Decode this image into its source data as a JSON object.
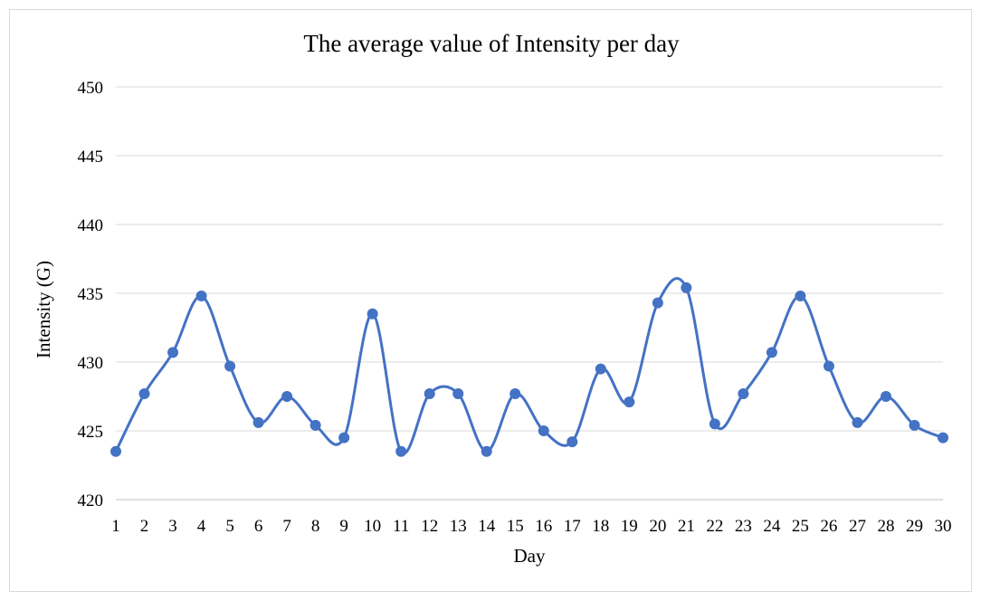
{
  "chart_data": {
    "type": "line",
    "title": "The average value of Intensity per day",
    "xlabel": "Day",
    "ylabel": "Intensity (G)",
    "ylim": [
      420,
      450
    ],
    "yticks": [
      420,
      425,
      430,
      435,
      440,
      445,
      450
    ],
    "grid": true,
    "smooth": true,
    "categories": [
      "1",
      "2",
      "3",
      "4",
      "5",
      "6",
      "7",
      "8",
      "9",
      "10",
      "11",
      "12",
      "13",
      "14",
      "15",
      "16",
      "17",
      "18",
      "19",
      "20",
      "21",
      "22",
      "23",
      "24",
      "25",
      "26",
      "27",
      "28",
      "29",
      "30"
    ],
    "series": [
      {
        "color": "#4472c4",
        "values": [
          423.5,
          427.7,
          430.7,
          434.8,
          429.7,
          425.6,
          427.5,
          425.4,
          424.5,
          433.5,
          423.5,
          427.7,
          427.7,
          423.5,
          427.7,
          425.0,
          424.2,
          429.5,
          427.1,
          434.3,
          435.4,
          425.5,
          427.7,
          430.7,
          434.8,
          429.7,
          425.6,
          427.5,
          425.4,
          424.5
        ]
      }
    ]
  }
}
